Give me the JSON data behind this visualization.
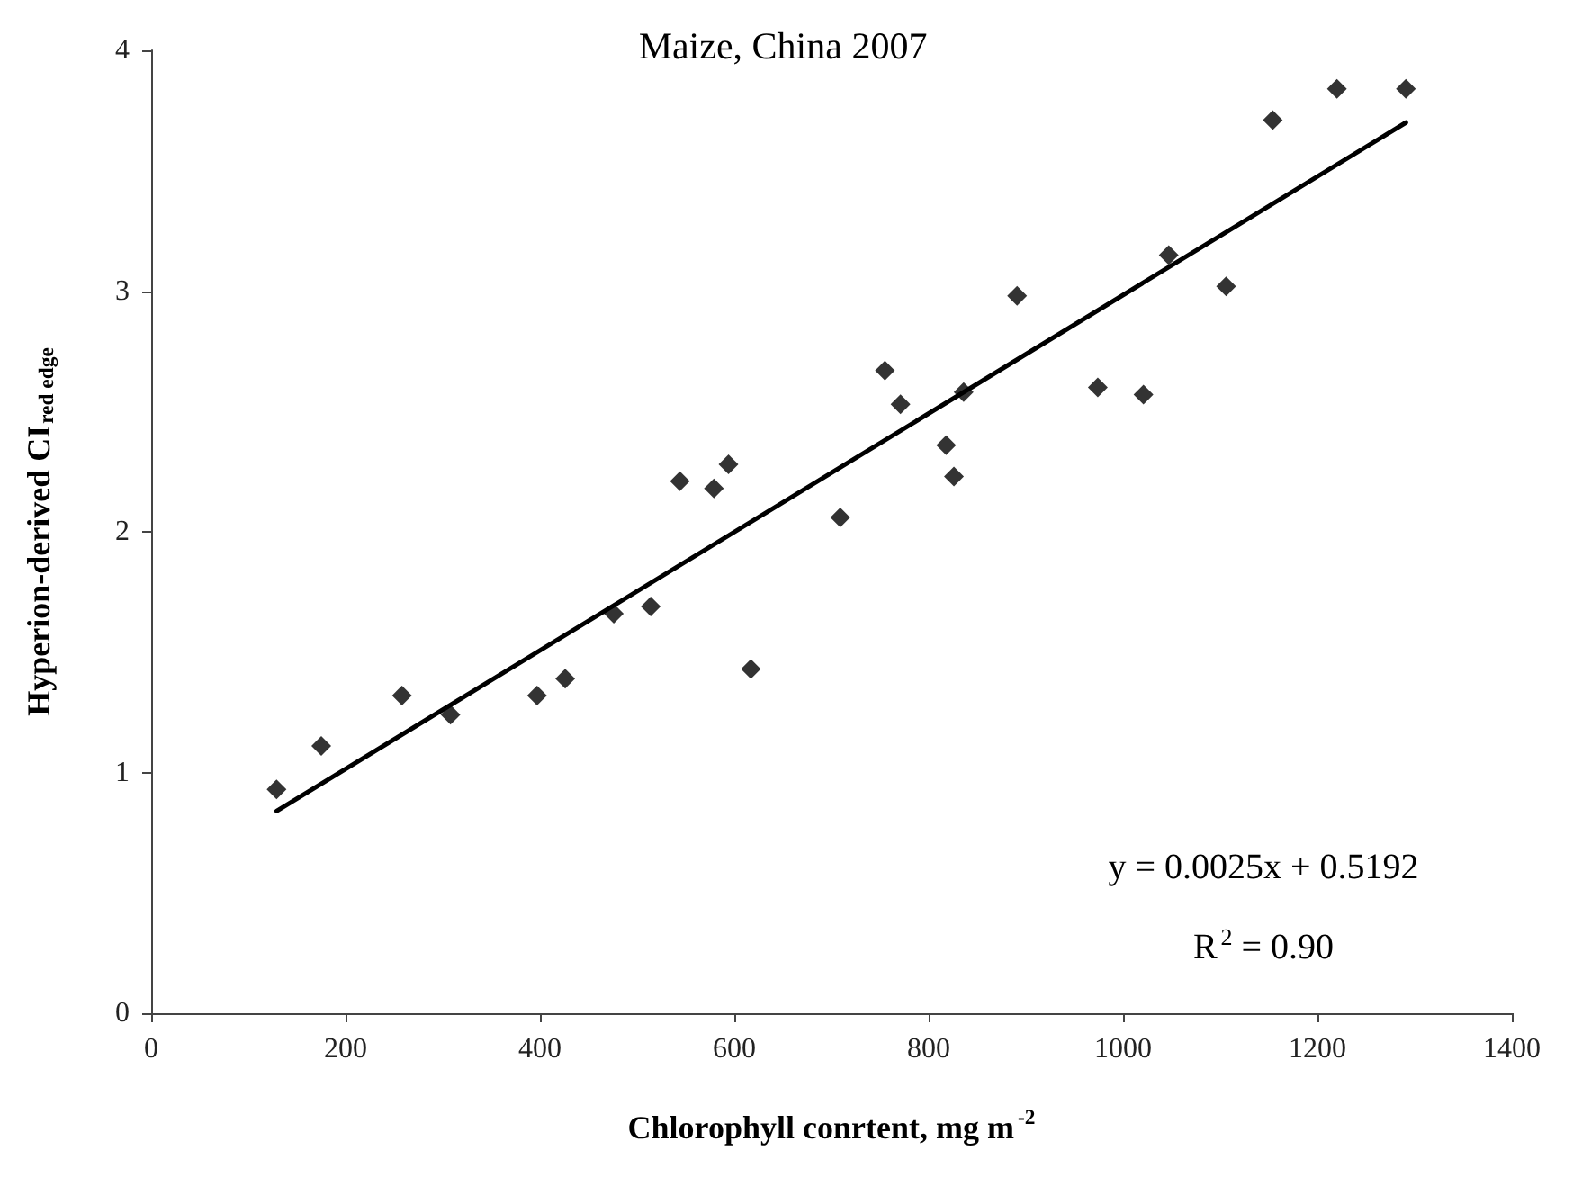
{
  "chart_data": {
    "type": "scatter",
    "title": "Maize, China 2007",
    "xlabel": "Chlorophyll conrtent, mg m$^{-2}$",
    "ylabel": "Hyperion-derived CI$_{red edge}$",
    "annotations": [
      "y = 0.0025x + 0.5192",
      "R$^{2}$ = 0.90"
    ],
    "xlim": [
      0,
      1400
    ],
    "xticks": [
      0,
      200,
      400,
      600,
      800,
      1000,
      1200,
      1400
    ],
    "ylim": [
      0,
      4
    ],
    "yticks": [
      0,
      1,
      2,
      3,
      4
    ],
    "grid": false,
    "series": [
      {
        "marker": "diamond",
        "color": "#000000",
        "x": [
          129,
          175,
          258,
          308,
          397,
          426,
          476,
          514,
          544,
          579,
          594,
          617,
          709,
          755,
          771,
          818,
          826,
          836,
          891,
          974,
          1021,
          1047,
          1106,
          1154,
          1220,
          1291
        ],
        "values": [
          0.93,
          1.11,
          1.32,
          1.24,
          1.32,
          1.39,
          1.66,
          1.69,
          2.21,
          2.18,
          2.28,
          1.43,
          2.06,
          2.67,
          2.53,
          2.36,
          2.23,
          2.58,
          2.98,
          2.6,
          2.57,
          3.15,
          3.02,
          3.71,
          3.84,
          3.84
        ]
      },
      {
        "type": "line",
        "marker": "none",
        "line_style": "solid",
        "color": "#000000",
        "x": [
          129,
          1291
        ],
        "values": [
          0.84,
          3.7
        ]
      }
    ]
  }
}
